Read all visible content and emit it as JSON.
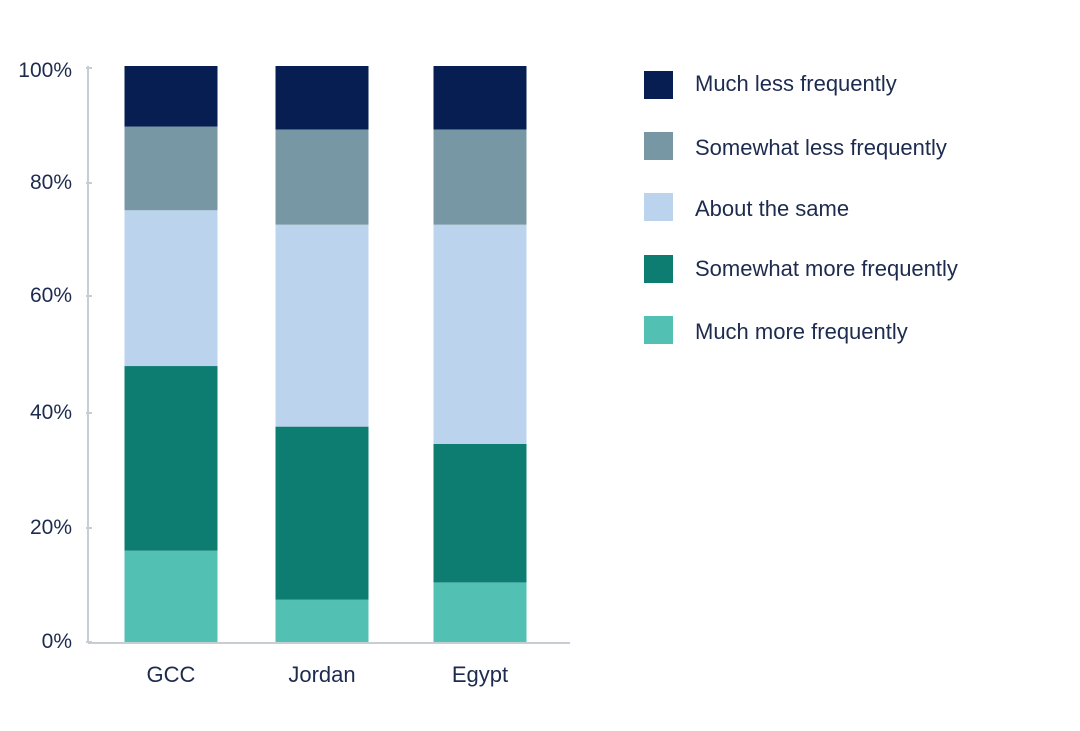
{
  "chart_data": {
    "type": "bar",
    "stacked": true,
    "title": "",
    "xlabel": "",
    "ylabel": "",
    "ylim": [
      0,
      100
    ],
    "y_ticks": [
      "0%",
      "20%",
      "40%",
      "60%",
      "80%",
      "100%"
    ],
    "categories": [
      "GCC",
      "Jordan",
      "Egypt"
    ],
    "legend_position": "right",
    "series": [
      {
        "name": "Much more frequently",
        "color": "#53c0b4",
        "values": [
          16,
          7.5,
          10.5
        ]
      },
      {
        "name": "Somewhat more frequently",
        "color": "#0d7d72",
        "values": [
          32,
          30,
          24
        ]
      },
      {
        "name": "About the same",
        "color": "#bbd3ec",
        "values": [
          27,
          35,
          38
        ]
      },
      {
        "name": "Somewhat less frequently",
        "color": "#7897a4",
        "values": [
          14.5,
          16.5,
          16.5
        ]
      },
      {
        "name": "Much less frequently",
        "color": "#061e52",
        "values": [
          10.5,
          11,
          11
        ]
      }
    ]
  }
}
